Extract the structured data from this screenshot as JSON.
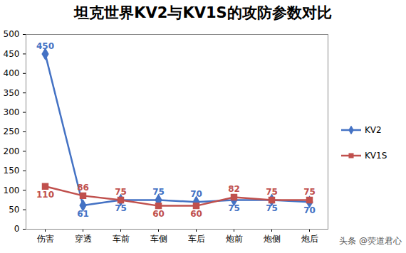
{
  "chart_data": {
    "type": "line",
    "title": "坦克世界KV2与KV1S的攻防参数对比",
    "caption": "头条 @荧道君心",
    "categories": [
      "伤害",
      "穿透",
      "车前",
      "车侧",
      "车后",
      "炮前",
      "炮侧",
      "炮后"
    ],
    "series": [
      {
        "name": "KV2",
        "color": "#4472c4",
        "marker": "diamond",
        "values": [
          450,
          61,
          75,
          75,
          70,
          75,
          75,
          70
        ]
      },
      {
        "name": "KV1S",
        "color": "#c0504d",
        "marker": "square",
        "values": [
          110,
          86,
          75,
          60,
          60,
          82,
          75,
          75
        ]
      }
    ],
    "ylim": [
      0,
      500
    ],
    "yticks": [
      0,
      50,
      100,
      150,
      200,
      250,
      300,
      350,
      400,
      450,
      500
    ],
    "grid": false,
    "legend": "right",
    "data_labels": true
  }
}
